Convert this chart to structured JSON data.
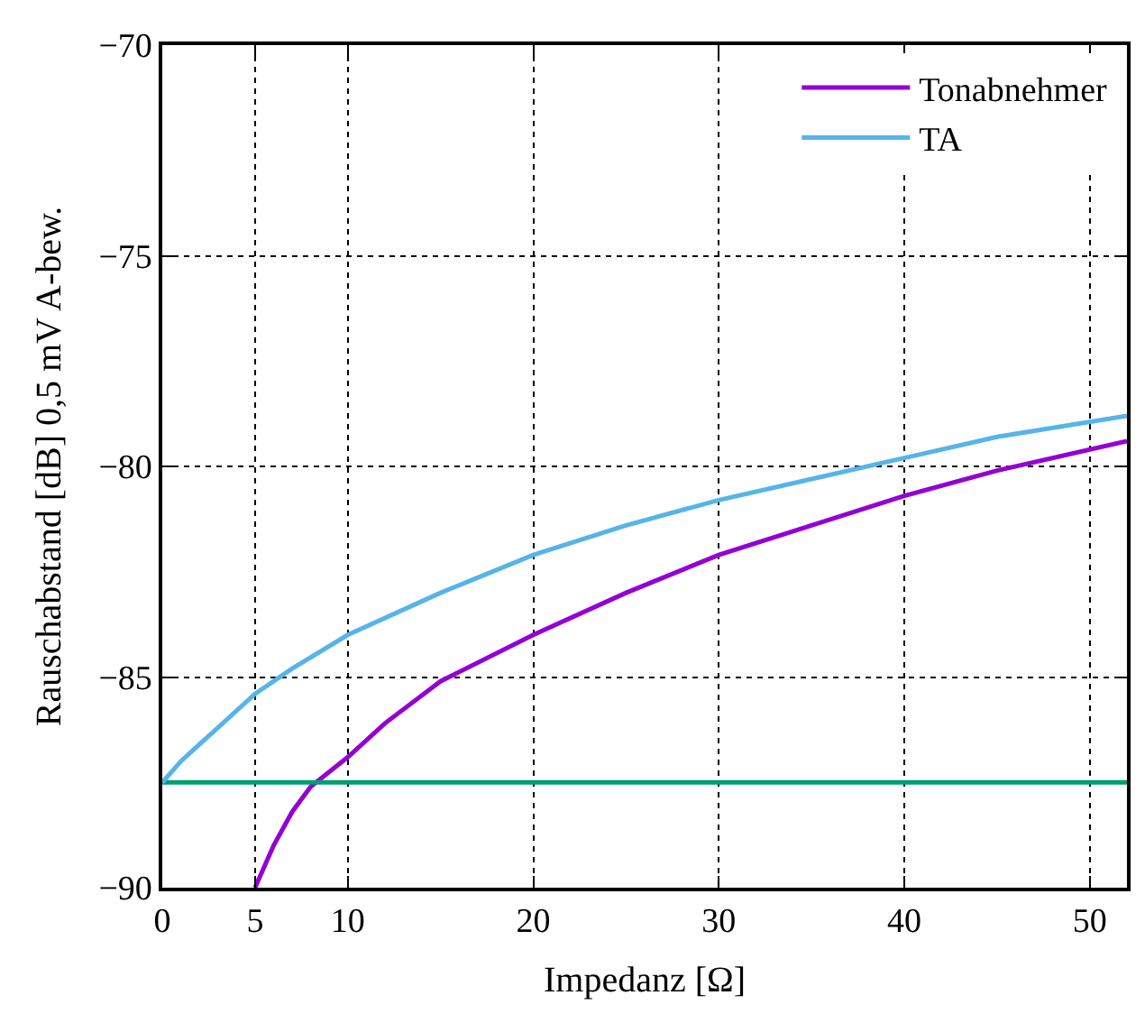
{
  "chart_data": {
    "type": "line",
    "xlabel": "Impedanz [Ω]",
    "ylabel": "Rauschabstand [dB] 0,5 mV A-bew.",
    "xlim": [
      0,
      52
    ],
    "xticks": [
      0,
      5,
      10,
      20,
      30,
      40,
      50
    ],
    "ylim": [
      -90,
      -70
    ],
    "yticks": [
      -90,
      -85,
      -80,
      -75,
      -70
    ],
    "grid": true,
    "legend": "top right",
    "marker": "none",
    "line_style": "solid",
    "series": [
      {
        "name": "Tonabnehmer",
        "color": "#9400d3",
        "x": [
          5,
          6,
          7,
          8,
          10,
          12,
          15,
          20,
          25,
          30,
          35,
          40,
          45,
          52
        ],
        "values": [
          -90,
          -89.0,
          -88.2,
          -87.6,
          -86.9,
          -86.1,
          -85.1,
          -84.0,
          -83.0,
          -82.1,
          -81.4,
          -80.7,
          -80.1,
          -79.4
        ]
      },
      {
        "color": "#009e73",
        "x": [
          0,
          52
        ],
        "values": [
          -87.5,
          -87.5
        ]
      },
      {
        "name": "TA",
        "color": "#56b4e9",
        "x": [
          0,
          1,
          2,
          3,
          5,
          7,
          10,
          15,
          20,
          25,
          30,
          35,
          40,
          45,
          52
        ],
        "values": [
          -87.5,
          -87.0,
          -86.6,
          -86.2,
          -85.4,
          -84.8,
          -84.0,
          -83.0,
          -82.1,
          -81.4,
          -80.8,
          -80.3,
          -79.8,
          -79.3,
          -78.8
        ]
      }
    ]
  }
}
